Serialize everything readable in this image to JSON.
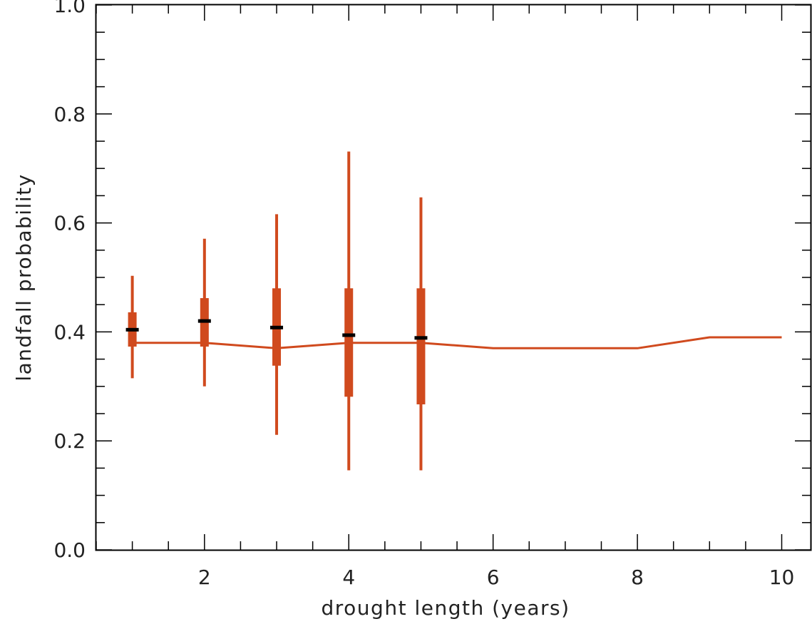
{
  "chart_data": {
    "type": "line",
    "title": "",
    "xlabel": "drought length (years)",
    "ylabel": "landfall probability",
    "xlim": [
      0.5,
      10.4
    ],
    "ylim": [
      0.0,
      1.0
    ],
    "x_ticks": [
      2,
      4,
      6,
      8,
      10
    ],
    "x_tick_labels": [
      "2",
      "4",
      "6",
      "8",
      "10"
    ],
    "x_minor_step": 0.5,
    "y_ticks": [
      0.0,
      0.2,
      0.4,
      0.6,
      0.8,
      1.0
    ],
    "y_tick_labels": [
      "0.0",
      "0.2",
      "0.4",
      "0.6",
      "0.8",
      "1.0"
    ],
    "y_minor_step": 0.05,
    "grid": false,
    "legend": "none",
    "series": [
      {
        "type": "line",
        "color": "#d04a1e",
        "x": [
          1,
          2,
          3,
          4,
          5,
          6,
          7,
          8,
          9,
          10
        ],
        "y": [
          0.38,
          0.38,
          0.37,
          0.38,
          0.38,
          0.37,
          0.37,
          0.37,
          0.39,
          0.39
        ]
      },
      {
        "type": "boxplot",
        "color": "#d04a1e",
        "median_color": "#000000",
        "points": [
          {
            "x": 1,
            "whisker_low": 0.315,
            "box_low": 0.373,
            "median": 0.404,
            "box_high": 0.436,
            "whisker_high": 0.503
          },
          {
            "x": 2,
            "whisker_low": 0.3,
            "box_low": 0.373,
            "median": 0.42,
            "box_high": 0.462,
            "whisker_high": 0.571
          },
          {
            "x": 3,
            "whisker_low": 0.211,
            "box_low": 0.338,
            "median": 0.408,
            "box_high": 0.48,
            "whisker_high": 0.616
          },
          {
            "x": 4,
            "whisker_low": 0.146,
            "box_low": 0.281,
            "median": 0.394,
            "box_high": 0.48,
            "whisker_high": 0.731
          },
          {
            "x": 5,
            "whisker_low": 0.146,
            "box_low": 0.267,
            "median": 0.389,
            "box_high": 0.48,
            "whisker_high": 0.647
          }
        ]
      }
    ]
  }
}
